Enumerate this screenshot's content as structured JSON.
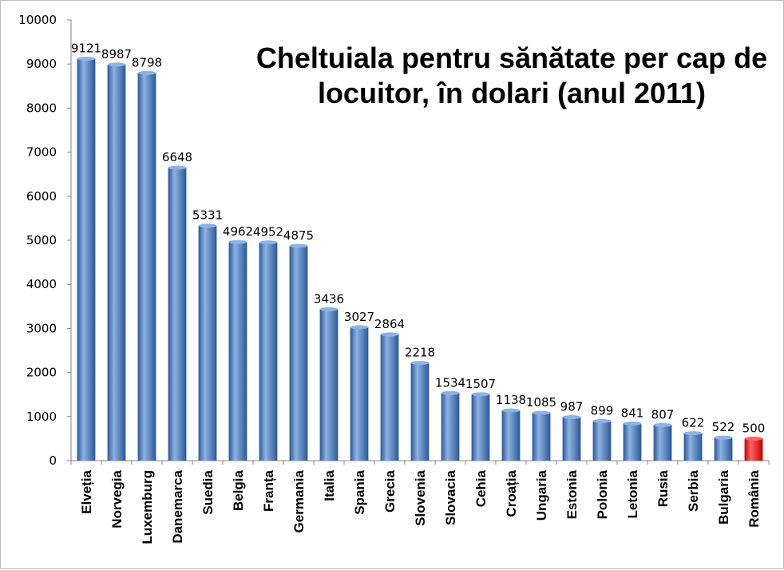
{
  "chart_data": {
    "type": "bar",
    "title": "Cheltuiala pentru sănătate per cap de locuitor, în dolari (anul 2011)",
    "xlabel": "",
    "ylabel": "",
    "ylim": [
      0,
      10000
    ],
    "yticks": [
      0,
      1000,
      2000,
      3000,
      4000,
      5000,
      6000,
      7000,
      8000,
      9000,
      10000
    ],
    "grid": false,
    "legend": "none",
    "categories": [
      "Elveția",
      "Norvegia",
      "Luxemburg",
      "Danemarca",
      "Suedia",
      "Belgia",
      "Franța",
      "Germania",
      "Italia",
      "Spania",
      "Grecia",
      "Slovenia",
      "Slovacia",
      "Cehia",
      "Croația",
      "Ungaria",
      "Estonia",
      "Polonia",
      "Letonia",
      "Rusia",
      "Serbia",
      "Bulgaria",
      "România"
    ],
    "values": [
      9121,
      8987,
      8798,
      6648,
      5331,
      4962,
      4952,
      4875,
      3436,
      3027,
      2864,
      2218,
      1534,
      1507,
      1138,
      1085,
      987,
      899,
      841,
      807,
      622,
      522,
      500
    ],
    "colors": {
      "bar": "#4f81bd",
      "bar_dark": "#2a5797",
      "bar_light": "#8db3e2",
      "highlight": "#ff0000",
      "highlight_dark": "#c00000",
      "highlight_light": "#ff6666"
    },
    "highlight_category": "România"
  }
}
